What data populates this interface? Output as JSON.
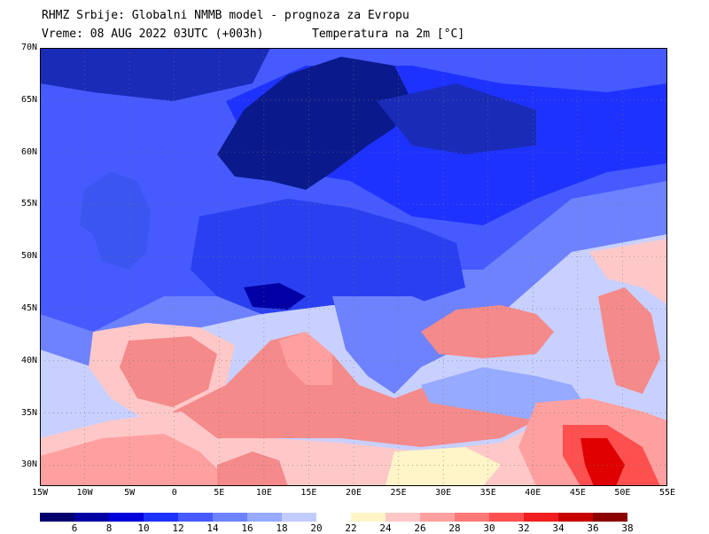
{
  "header": {
    "line1": "RHMZ Srbije: Globalni NMMB model - prognoza za Evropu",
    "line2_left": "Vreme: 08 AUG 2022 03UTC (+003h)",
    "line2_right": "Temperatura na 2m [°C]"
  },
  "axes": {
    "lat_labels": [
      "70N",
      "65N",
      "60N",
      "55N",
      "50N",
      "45N",
      "40N",
      "35N",
      "30N"
    ],
    "lon_labels": [
      "15W",
      "10W",
      "5W",
      "0",
      "5E",
      "10E",
      "15E",
      "20E",
      "25E",
      "30E",
      "35E",
      "40E",
      "45E",
      "50E",
      "55E"
    ],
    "lat_range": [
      28,
      70
    ],
    "lon_range": [
      -15,
      55
    ]
  },
  "legend": {
    "labels": [
      "6",
      "8",
      "10",
      "12",
      "14",
      "16",
      "18",
      "20",
      "22",
      "24",
      "26",
      "28",
      "30",
      "32",
      "34",
      "36",
      "38"
    ],
    "colors": [
      "#00006e",
      "#0000a5",
      "#0000dc",
      "#1e32ff",
      "#465aff",
      "#6e82ff",
      "#96aaff",
      "#c3ccff",
      "#ffffff",
      "#fff5c8",
      "#ffc8c8",
      "#ffa0a0",
      "#ff7878",
      "#ff5050",
      "#f01e1e",
      "#c80000",
      "#8c0000"
    ]
  },
  "colors": {
    "land_cool": "#3b55f0",
    "land_very_cool": "#1a2bb8",
    "scandinavia_cold": "#0a1a8c",
    "sea_warm": "#f58a8a",
    "africa_warm": "#ffbcbc",
    "hot_core": "#e00000",
    "atlantic": "#c8d0ff"
  }
}
